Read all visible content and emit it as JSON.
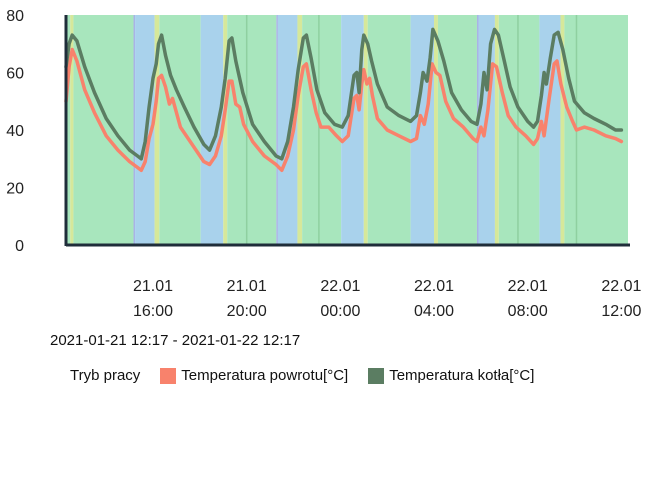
{
  "chart_data": {
    "type": "line",
    "ylim": [
      0,
      80
    ],
    "yticks": [
      "0",
      "20",
      "40",
      "60",
      "80"
    ],
    "x_start": "2021-01-21 12:17",
    "x_end": "2021-01-22 12:17",
    "xticks": [
      {
        "time": "2021-01-21 16:00",
        "line1": "21.01",
        "line2": "16:00"
      },
      {
        "time": "2021-01-21 20:00",
        "line1": "21.01",
        "line2": "20:00"
      },
      {
        "time": "2021-01-22 00:00",
        "line1": "22.01",
        "line2": "00:00"
      },
      {
        "time": "2021-01-22 04:00",
        "line1": "22.01",
        "line2": "04:00"
      },
      {
        "time": "2021-01-22 08:00",
        "line1": "22.01",
        "line2": "08:00"
      },
      {
        "time": "2021-01-22 12:00",
        "line1": "22.01",
        "line2": "12:00"
      }
    ],
    "mode_colors": {
      "green": "#a8e6bd",
      "blue": "#a9d2ec",
      "yellow": "#d6e89a",
      "lavender": "#a9b3e6",
      "gray": "#8fd0a0"
    },
    "mode_bands": [
      {
        "start": "2021-01-21 12:17",
        "end": "2021-01-21 12:28",
        "mode": "green"
      },
      {
        "start": "2021-01-21 12:28",
        "end": "2021-01-21 12:36",
        "mode": "yellow"
      },
      {
        "start": "2021-01-21 12:36",
        "end": "2021-01-21 15:10",
        "mode": "green"
      },
      {
        "start": "2021-01-21 15:10",
        "end": "2021-01-21 15:14",
        "mode": "lavender"
      },
      {
        "start": "2021-01-21 15:14",
        "end": "2021-01-21 16:04",
        "mode": "blue"
      },
      {
        "start": "2021-01-21 16:04",
        "end": "2021-01-21 16:16",
        "mode": "yellow"
      },
      {
        "start": "2021-01-21 16:16",
        "end": "2021-01-21 18:02",
        "mode": "green"
      },
      {
        "start": "2021-01-21 18:02",
        "end": "2021-01-21 19:00",
        "mode": "blue"
      },
      {
        "start": "2021-01-21 19:00",
        "end": "2021-01-21 19:10",
        "mode": "yellow"
      },
      {
        "start": "2021-01-21 19:10",
        "end": "2021-01-21 21:16",
        "mode": "green"
      },
      {
        "start": "2021-01-21 21:16",
        "end": "2021-01-21 21:20",
        "mode": "lavender"
      },
      {
        "start": "2021-01-21 21:20",
        "end": "2021-01-21 22:10",
        "mode": "blue"
      },
      {
        "start": "2021-01-21 22:10",
        "end": "2021-01-21 22:22",
        "mode": "yellow"
      },
      {
        "start": "2021-01-21 22:22",
        "end": "2021-01-22 00:02",
        "mode": "green"
      },
      {
        "start": "2021-01-22 00:02",
        "end": "2021-01-22 01:00",
        "mode": "blue"
      },
      {
        "start": "2021-01-22 01:00",
        "end": "2021-01-22 01:10",
        "mode": "yellow"
      },
      {
        "start": "2021-01-22 01:10",
        "end": "2021-01-22 03:00",
        "mode": "green"
      },
      {
        "start": "2021-01-22 03:00",
        "end": "2021-01-22 04:00",
        "mode": "blue"
      },
      {
        "start": "2021-01-22 04:00",
        "end": "2021-01-22 04:10",
        "mode": "yellow"
      },
      {
        "start": "2021-01-22 04:10",
        "end": "2021-01-22 05:50",
        "mode": "green"
      },
      {
        "start": "2021-01-22 05:50",
        "end": "2021-01-22 05:54",
        "mode": "lavender"
      },
      {
        "start": "2021-01-22 05:54",
        "end": "2021-01-22 06:36",
        "mode": "blue"
      },
      {
        "start": "2021-01-22 06:36",
        "end": "2021-01-22 06:46",
        "mode": "yellow"
      },
      {
        "start": "2021-01-22 06:46",
        "end": "2021-01-22 08:30",
        "mode": "green"
      },
      {
        "start": "2021-01-22 08:30",
        "end": "2021-01-22 09:24",
        "mode": "blue"
      },
      {
        "start": "2021-01-22 09:24",
        "end": "2021-01-22 09:34",
        "mode": "yellow"
      },
      {
        "start": "2021-01-22 09:34",
        "end": "2021-01-22 12:17",
        "mode": "green"
      }
    ],
    "mode_lines": [
      "2021-01-21 20:00",
      "2021-01-21 23:05",
      "2021-01-22 07:35",
      "2021-01-22 10:05"
    ],
    "series": [
      {
        "name": "Temperatura powrotu[°C]",
        "color": "#f8826c",
        "points": [
          [
            "2021-01-21 12:17",
            50
          ],
          [
            "2021-01-21 12:25",
            62
          ],
          [
            "2021-01-21 12:33",
            68
          ],
          [
            "2021-01-21 12:45",
            64
          ],
          [
            "2021-01-21 13:05",
            54
          ],
          [
            "2021-01-21 13:30",
            46
          ],
          [
            "2021-01-21 14:00",
            38
          ],
          [
            "2021-01-21 14:30",
            33
          ],
          [
            "2021-01-21 15:00",
            29
          ],
          [
            "2021-01-21 15:20",
            27
          ],
          [
            "2021-01-21 15:30",
            26
          ],
          [
            "2021-01-21 15:40",
            29
          ],
          [
            "2021-01-21 15:50",
            37
          ],
          [
            "2021-01-21 16:00",
            42
          ],
          [
            "2021-01-21 16:08",
            50
          ],
          [
            "2021-01-21 16:14",
            58
          ],
          [
            "2021-01-21 16:22",
            59
          ],
          [
            "2021-01-21 16:32",
            55
          ],
          [
            "2021-01-21 16:42",
            49
          ],
          [
            "2021-01-21 16:50",
            51
          ],
          [
            "2021-01-21 16:58",
            47
          ],
          [
            "2021-01-21 17:10",
            41
          ],
          [
            "2021-01-21 17:40",
            35
          ],
          [
            "2021-01-21 18:10",
            29
          ],
          [
            "2021-01-21 18:25",
            28
          ],
          [
            "2021-01-21 18:40",
            31
          ],
          [
            "2021-01-21 18:55",
            38
          ],
          [
            "2021-01-21 19:05",
            47
          ],
          [
            "2021-01-21 19:15",
            57
          ],
          [
            "2021-01-21 19:22",
            57
          ],
          [
            "2021-01-21 19:32",
            49
          ],
          [
            "2021-01-21 19:42",
            48
          ],
          [
            "2021-01-21 19:52",
            42
          ],
          [
            "2021-01-21 20:15",
            36
          ],
          [
            "2021-01-21 20:45",
            31
          ],
          [
            "2021-01-21 21:15",
            28
          ],
          [
            "2021-01-21 21:30",
            26
          ],
          [
            "2021-01-21 21:45",
            31
          ],
          [
            "2021-01-21 22:00",
            40
          ],
          [
            "2021-01-21 22:12",
            52
          ],
          [
            "2021-01-21 22:25",
            62
          ],
          [
            "2021-01-21 22:33",
            63
          ],
          [
            "2021-01-21 22:45",
            54
          ],
          [
            "2021-01-21 22:58",
            46
          ],
          [
            "2021-01-21 23:10",
            41
          ],
          [
            "2021-01-21 23:30",
            41
          ],
          [
            "2021-01-21 23:50",
            38
          ],
          [
            "2021-01-22 00:05",
            36
          ],
          [
            "2021-01-22 00:20",
            38
          ],
          [
            "2021-01-22 00:35",
            51
          ],
          [
            "2021-01-22 00:42",
            52
          ],
          [
            "2021-01-22 00:48",
            47
          ],
          [
            "2021-01-22 00:55",
            56
          ],
          [
            "2021-01-22 01:00",
            61
          ],
          [
            "2021-01-22 01:08",
            56
          ],
          [
            "2021-01-22 01:15",
            58
          ],
          [
            "2021-01-22 01:22",
            52
          ],
          [
            "2021-01-22 01:35",
            44
          ],
          [
            "2021-01-22 02:00",
            40
          ],
          [
            "2021-01-22 02:30",
            38
          ],
          [
            "2021-01-22 03:00",
            36
          ],
          [
            "2021-01-22 03:15",
            37
          ],
          [
            "2021-01-22 03:25",
            45
          ],
          [
            "2021-01-22 03:35",
            42
          ],
          [
            "2021-01-22 03:45",
            49
          ],
          [
            "2021-01-22 03:55",
            63
          ],
          [
            "2021-01-22 04:05",
            60
          ],
          [
            "2021-01-22 04:15",
            59
          ],
          [
            "2021-01-22 04:30",
            50
          ],
          [
            "2021-01-22 04:50",
            44
          ],
          [
            "2021-01-22 05:15",
            41
          ],
          [
            "2021-01-22 05:40",
            37
          ],
          [
            "2021-01-22 05:50",
            36
          ],
          [
            "2021-01-22 06:00",
            41
          ],
          [
            "2021-01-22 06:08",
            38
          ],
          [
            "2021-01-22 06:18",
            47
          ],
          [
            "2021-01-22 06:30",
            63
          ],
          [
            "2021-01-22 06:40",
            62
          ],
          [
            "2021-01-22 06:55",
            53
          ],
          [
            "2021-01-22 07:10",
            45
          ],
          [
            "2021-01-22 07:30",
            41
          ],
          [
            "2021-01-22 07:55",
            38
          ],
          [
            "2021-01-22 08:15",
            35
          ],
          [
            "2021-01-22 08:25",
            37
          ],
          [
            "2021-01-22 08:35",
            43
          ],
          [
            "2021-01-22 08:42",
            38
          ],
          [
            "2021-01-22 08:55",
            51
          ],
          [
            "2021-01-22 09:08",
            63
          ],
          [
            "2021-01-22 09:15",
            64
          ],
          [
            "2021-01-22 09:25",
            56
          ],
          [
            "2021-01-22 09:40",
            48
          ],
          [
            "2021-01-22 09:55",
            43
          ],
          [
            "2021-01-22 10:05",
            40
          ],
          [
            "2021-01-22 10:25",
            41
          ],
          [
            "2021-01-22 10:50",
            40
          ],
          [
            "2021-01-22 11:20",
            38
          ],
          [
            "2021-01-22 11:45",
            37
          ],
          [
            "2021-01-22 12:00",
            36
          ]
        ]
      },
      {
        "name": "Temperatura kotła[°C]",
        "color": "#5b7d62",
        "points": [
          [
            "2021-01-21 12:17",
            62
          ],
          [
            "2021-01-21 12:25",
            70
          ],
          [
            "2021-01-21 12:33",
            73
          ],
          [
            "2021-01-21 12:45",
            71
          ],
          [
            "2021-01-21 13:05",
            62
          ],
          [
            "2021-01-21 13:30",
            53
          ],
          [
            "2021-01-21 14:00",
            44
          ],
          [
            "2021-01-21 14:30",
            38
          ],
          [
            "2021-01-21 15:00",
            33
          ],
          [
            "2021-01-21 15:20",
            31
          ],
          [
            "2021-01-21 15:30",
            30
          ],
          [
            "2021-01-21 15:40",
            36
          ],
          [
            "2021-01-21 15:50",
            48
          ],
          [
            "2021-01-21 16:00",
            58
          ],
          [
            "2021-01-21 16:08",
            63
          ],
          [
            "2021-01-21 16:14",
            70
          ],
          [
            "2021-01-21 16:22",
            73
          ],
          [
            "2021-01-21 16:32",
            66
          ],
          [
            "2021-01-21 16:45",
            59
          ],
          [
            "2021-01-21 17:00",
            54
          ],
          [
            "2021-01-21 17:20",
            48
          ],
          [
            "2021-01-21 17:45",
            41
          ],
          [
            "2021-01-21 18:10",
            35
          ],
          [
            "2021-01-21 18:25",
            33
          ],
          [
            "2021-01-21 18:40",
            38
          ],
          [
            "2021-01-21 18:55",
            48
          ],
          [
            "2021-01-21 19:05",
            58
          ],
          [
            "2021-01-21 19:15",
            71
          ],
          [
            "2021-01-21 19:22",
            72
          ],
          [
            "2021-01-21 19:32",
            64
          ],
          [
            "2021-01-21 19:50",
            53
          ],
          [
            "2021-01-21 20:15",
            42
          ],
          [
            "2021-01-21 20:45",
            36
          ],
          [
            "2021-01-21 21:15",
            31
          ],
          [
            "2021-01-21 21:30",
            30
          ],
          [
            "2021-01-21 21:45",
            36
          ],
          [
            "2021-01-21 22:00",
            48
          ],
          [
            "2021-01-21 22:12",
            61
          ],
          [
            "2021-01-21 22:25",
            72
          ],
          [
            "2021-01-21 22:33",
            73
          ],
          [
            "2021-01-21 22:45",
            65
          ],
          [
            "2021-01-21 23:00",
            54
          ],
          [
            "2021-01-21 23:20",
            46
          ],
          [
            "2021-01-21 23:45",
            42
          ],
          [
            "2021-01-22 00:05",
            41
          ],
          [
            "2021-01-22 00:20",
            45
          ],
          [
            "2021-01-22 00:35",
            59
          ],
          [
            "2021-01-22 00:42",
            60
          ],
          [
            "2021-01-22 00:48",
            53
          ],
          [
            "2021-01-22 00:55",
            68
          ],
          [
            "2021-01-22 01:00",
            73
          ],
          [
            "2021-01-22 01:10",
            70
          ],
          [
            "2021-01-22 01:20",
            64
          ],
          [
            "2021-01-22 01:35",
            56
          ],
          [
            "2021-01-22 02:00",
            48
          ],
          [
            "2021-01-22 02:30",
            45
          ],
          [
            "2021-01-22 03:00",
            43
          ],
          [
            "2021-01-22 03:15",
            45
          ],
          [
            "2021-01-22 03:25",
            53
          ],
          [
            "2021-01-22 03:32",
            60
          ],
          [
            "2021-01-22 03:42",
            57
          ],
          [
            "2021-01-22 03:50",
            65
          ],
          [
            "2021-01-22 03:57",
            75
          ],
          [
            "2021-01-22 04:10",
            71
          ],
          [
            "2021-01-22 04:25",
            64
          ],
          [
            "2021-01-22 04:45",
            53
          ],
          [
            "2021-01-22 05:10",
            47
          ],
          [
            "2021-01-22 05:35",
            43
          ],
          [
            "2021-01-22 05:50",
            42
          ],
          [
            "2021-01-22 06:00",
            49
          ],
          [
            "2021-01-22 06:08",
            60
          ],
          [
            "2021-01-22 06:16",
            54
          ],
          [
            "2021-01-22 06:25",
            70
          ],
          [
            "2021-01-22 06:35",
            75
          ],
          [
            "2021-01-22 06:45",
            73
          ],
          [
            "2021-01-22 07:00",
            64
          ],
          [
            "2021-01-22 07:15",
            55
          ],
          [
            "2021-01-22 07:35",
            48
          ],
          [
            "2021-01-22 08:00",
            43
          ],
          [
            "2021-01-22 08:15",
            41
          ],
          [
            "2021-01-22 08:25",
            43
          ],
          [
            "2021-01-22 08:35",
            52
          ],
          [
            "2021-01-22 08:42",
            60
          ],
          [
            "2021-01-22 08:48",
            56
          ],
          [
            "2021-01-22 08:58",
            65
          ],
          [
            "2021-01-22 09:08",
            73
          ],
          [
            "2021-01-22 09:18",
            74
          ],
          [
            "2021-01-22 09:30",
            68
          ],
          [
            "2021-01-22 09:45",
            58
          ],
          [
            "2021-01-22 10:00",
            50
          ],
          [
            "2021-01-22 10:25",
            46
          ],
          [
            "2021-01-22 10:50",
            44
          ],
          [
            "2021-01-22 11:20",
            42
          ],
          [
            "2021-01-22 11:45",
            40
          ],
          [
            "2021-01-22 12:00",
            40
          ]
        ]
      }
    ]
  },
  "range_label": "2021-01-21 12:17 - 2021-01-22 12:17",
  "legend": {
    "mode_label": "Tryb pracy",
    "items": [
      {
        "label": "Temperatura powrotu[°C]",
        "color": "#f8826c"
      },
      {
        "label": "Temperatura kotła[°C]",
        "color": "#5b7d62"
      }
    ]
  }
}
